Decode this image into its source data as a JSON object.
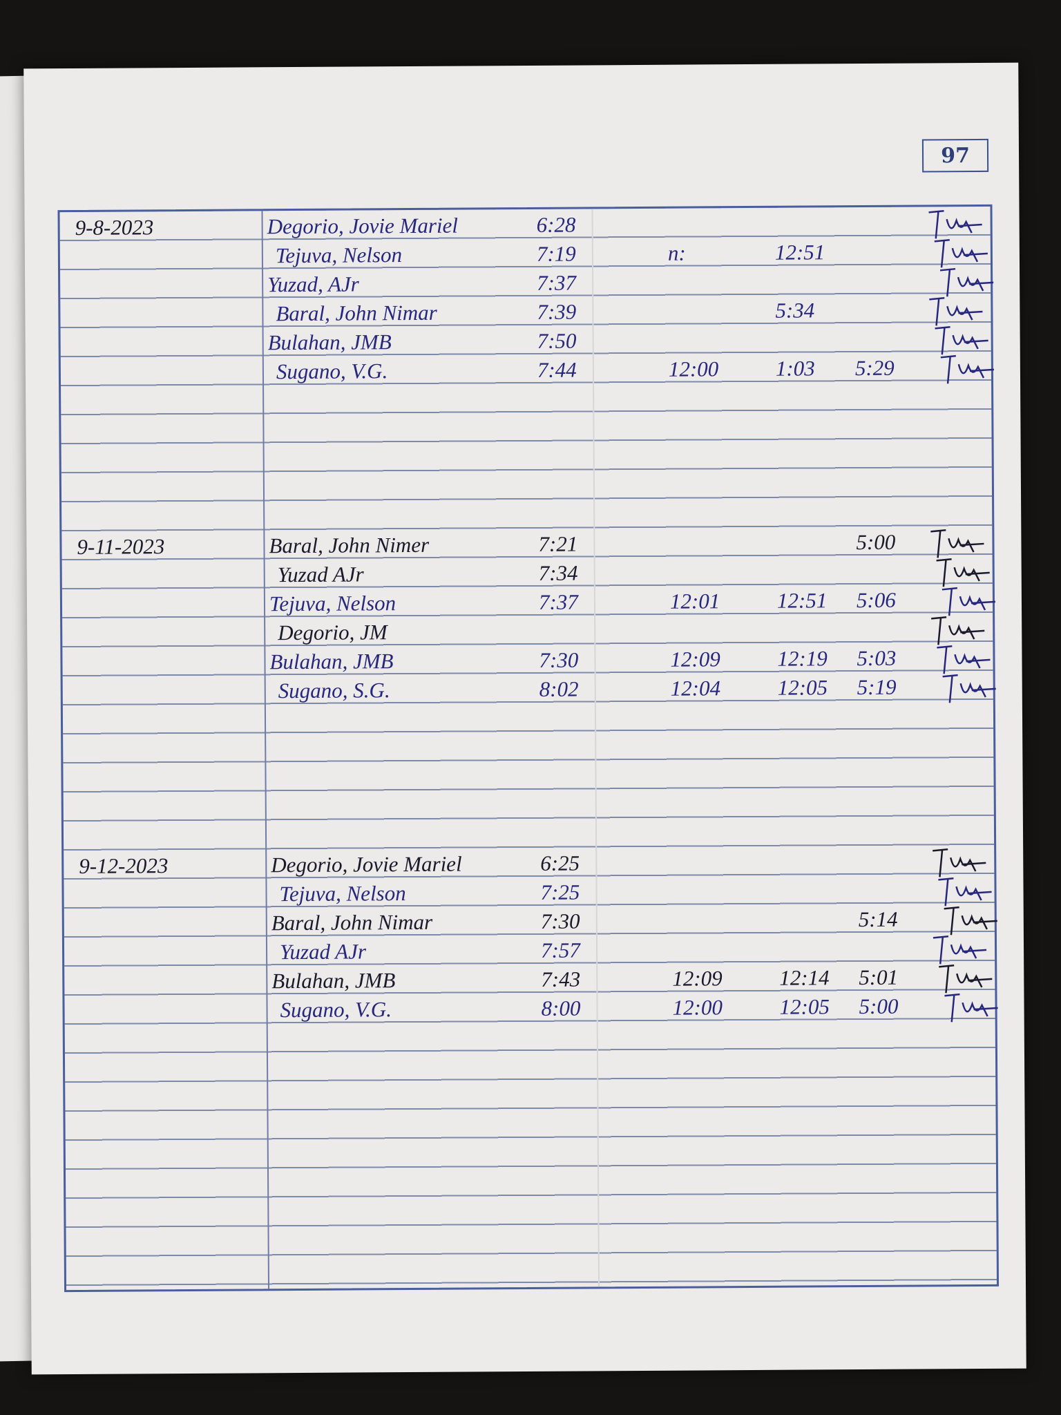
{
  "page_number": "97",
  "ink_colors": {
    "blue": "#27277e",
    "black": "#1a1a2a"
  },
  "sections": [
    {
      "date": "9-8-2023",
      "rows": [
        {
          "name": "Degorio, Jovie Mariel",
          "time_in": "6:28",
          "lunch_out": "",
          "lunch_in": "",
          "time_out": "",
          "ink": "blue"
        },
        {
          "name": "Tejuva, Nelson",
          "time_in": "7:19",
          "lunch_out": "n:",
          "lunch_in": "12:51",
          "time_out": "",
          "ink": "blue"
        },
        {
          "name": "Yuzad, AJr",
          "time_in": "7:37",
          "lunch_out": "",
          "lunch_in": "",
          "time_out": "",
          "ink": "blue"
        },
        {
          "name": "Baral, John Nimar",
          "time_in": "7:39",
          "lunch_out": "",
          "lunch_in": "5:34",
          "time_out": "",
          "ink": "blue"
        },
        {
          "name": "Bulahan, JMB",
          "time_in": "7:50",
          "lunch_out": "",
          "lunch_in": "",
          "time_out": "",
          "ink": "blue"
        },
        {
          "name": "Sugano, V.G.",
          "time_in": "7:44",
          "lunch_out": "12:00",
          "lunch_in": "1:03",
          "time_out": "5:29",
          "ink": "blue"
        }
      ]
    },
    {
      "date": "9-11-2023",
      "rows": [
        {
          "name": "Baral, John Nimer",
          "time_in": "7:21",
          "lunch_out": "",
          "lunch_in": "",
          "time_out": "5:00",
          "ink": "black"
        },
        {
          "name": "Yuzad AJr",
          "time_in": "7:34",
          "lunch_out": "",
          "lunch_in": "",
          "time_out": "",
          "ink": "black"
        },
        {
          "name": "Tejuva, Nelson",
          "time_in": "7:37",
          "lunch_out": "12:01",
          "lunch_in": "12:51",
          "time_out": "5:06",
          "ink": "blue"
        },
        {
          "name": "Degorio, JM",
          "time_in": "",
          "lunch_out": "",
          "lunch_in": "",
          "time_out": "",
          "ink": "black"
        },
        {
          "name": "Bulahan, JMB",
          "time_in": "7:30",
          "lunch_out": "12:09",
          "lunch_in": "12:19",
          "time_out": "5:03",
          "ink": "blue"
        },
        {
          "name": "Sugano, S.G.",
          "time_in": "8:02",
          "lunch_out": "12:04",
          "lunch_in": "12:05",
          "time_out": "5:19",
          "ink": "blue"
        }
      ]
    },
    {
      "date": "9-12-2023",
      "rows": [
        {
          "name": "Degorio, Jovie Mariel",
          "time_in": "6:25",
          "lunch_out": "",
          "lunch_in": "",
          "time_out": "",
          "ink": "black"
        },
        {
          "name": "Tejuva, Nelson",
          "time_in": "7:25",
          "lunch_out": "",
          "lunch_in": "",
          "time_out": "",
          "ink": "blue"
        },
        {
          "name": "Baral, John Nimar",
          "time_in": "7:30",
          "lunch_out": "",
          "lunch_in": "",
          "time_out": "5:14",
          "ink": "black"
        },
        {
          "name": "Yuzad AJr",
          "time_in": "7:57",
          "lunch_out": "",
          "lunch_in": "",
          "time_out": "",
          "ink": "blue"
        },
        {
          "name": "Bulahan, JMB",
          "time_in": "7:43",
          "lunch_out": "12:09",
          "lunch_in": "12:14",
          "time_out": "5:01",
          "ink": "black"
        },
        {
          "name": "Sugano, V.G.",
          "time_in": "8:00",
          "lunch_out": "12:00",
          "lunch_in": "12:05",
          "time_out": "5:00",
          "ink": "blue"
        }
      ]
    }
  ]
}
